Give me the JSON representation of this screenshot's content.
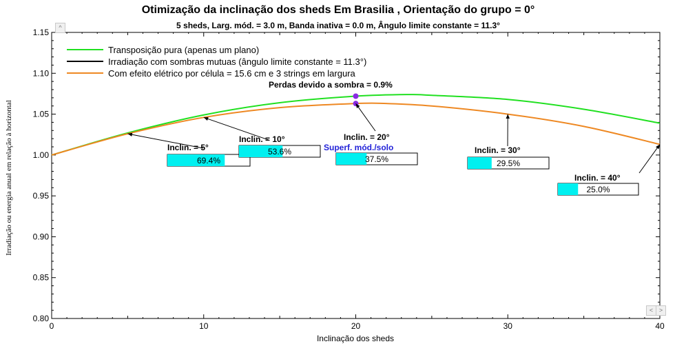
{
  "chart_data": {
    "type": "line",
    "title": "Otimização da inclinação dos sheds Em Brasilia , Orientação do grupo = 0°",
    "subtitle": "5 sheds,  Larg. mód. = 3.0 m, Banda inativa = 0.0 m, Ângulo limite constante = 11.3°",
    "xlabel": "Inclinação dos sheds",
    "ylabel": "Irradiação ou energia anual em relação à horizontal",
    "xlim": [
      0,
      40
    ],
    "ylim": [
      0.8,
      1.15
    ],
    "xticks": [
      "0",
      "10",
      "20",
      "30",
      "40"
    ],
    "yticks": [
      "0.80",
      "0.85",
      "0.90",
      "0.95",
      "1.00",
      "1.05",
      "1.10",
      "1.15"
    ],
    "grid": false,
    "legend_position": "top-left",
    "series": [
      {
        "name": "Transposição pura (apenas um plano)",
        "color": "#20e020",
        "x": [
          0,
          5,
          10,
          15,
          20,
          23.5,
          25,
          30,
          35,
          40
        ],
        "y": [
          1.0,
          1.027,
          1.049,
          1.064,
          1.072,
          1.074,
          1.073,
          1.068,
          1.056,
          1.039
        ]
      },
      {
        "name": "Irradiação com sombras mutuas (ângulo limite constante = 11.3°)",
        "color": "#000000",
        "x": [],
        "y": []
      },
      {
        "name": "Com efeito elétrico por célula = 15.6 cm e 3 strings em largura",
        "color": "#ee8822",
        "x": [
          0,
          5,
          10,
          15,
          20,
          22,
          25,
          30,
          35,
          40
        ],
        "y": [
          1.0,
          1.026,
          1.046,
          1.058,
          1.063,
          1.063,
          1.06,
          1.05,
          1.035,
          1.013
        ]
      }
    ],
    "loss_label": "Perdas devido a sombra = 0.9%",
    "marker_label": "Superf. mód./solo",
    "marker_color": "#8a2be2",
    "markers": [
      {
        "x": 20,
        "y": 1.072
      },
      {
        "x": 20,
        "y": 1.063
      }
    ],
    "annotations": [
      {
        "label": "Inclin. = 5°",
        "pct_text": "69.4%",
        "pct": 69.4,
        "x": 5,
        "y": 1.026
      },
      {
        "label": "Inclin. = 10°",
        "pct_text": "53.6%",
        "pct": 53.6,
        "x": 10,
        "y": 1.046
      },
      {
        "label": "Inclin. = 20°",
        "pct_text": "37.5%",
        "pct": 37.5,
        "x": 20,
        "y": 1.063
      },
      {
        "label": "Inclin. = 30°",
        "pct_text": "29.5%",
        "pct": 29.5,
        "x": 30,
        "y": 1.05
      },
      {
        "label": "Inclin. = 40°",
        "pct_text": "25.0%",
        "pct": 25.0,
        "x": 40,
        "y": 1.013
      }
    ],
    "bar_color": "#00f0f0"
  },
  "scrollbar": {
    "up_icon": "chevron-up-icon",
    "left_icon": "chevron-left-icon",
    "right_icon": "chevron-right-icon"
  }
}
